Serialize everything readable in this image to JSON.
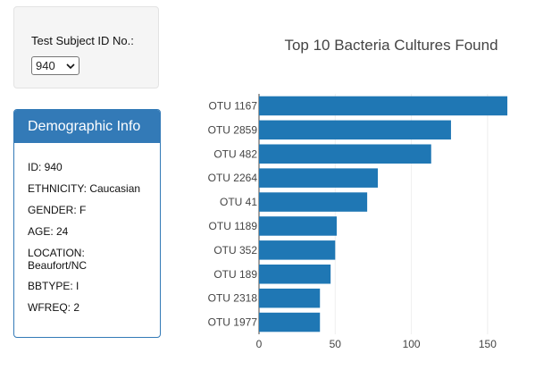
{
  "selector": {
    "label": "Test Subject ID No.:",
    "selected": "940"
  },
  "panel": {
    "title": "Demographic Info",
    "rows": [
      "ID: 940",
      "ETHNICITY: Caucasian",
      "GENDER: F",
      "AGE: 24",
      "LOCATION: Beaufort/NC",
      "BBTYPE: I",
      "WFREQ: 2"
    ]
  },
  "colors": {
    "bar": "#1f77b4",
    "panel": "#337ab7"
  },
  "chart_data": {
    "type": "bar",
    "orientation": "horizontal",
    "title": "Top 10 Bacteria Cultures Found",
    "categories": [
      "OTU 1167",
      "OTU 2859",
      "OTU 482",
      "OTU 2264",
      "OTU 41",
      "OTU 1189",
      "OTU 352",
      "OTU 189",
      "OTU 2318",
      "OTU 1977"
    ],
    "values": [
      163,
      126,
      113,
      78,
      71,
      51,
      50,
      47,
      40,
      40
    ],
    "xlim": [
      0,
      170
    ],
    "xticks": [
      0,
      50,
      100,
      150
    ],
    "xlabel": "",
    "ylabel": "",
    "grid": true,
    "legend": false
  }
}
